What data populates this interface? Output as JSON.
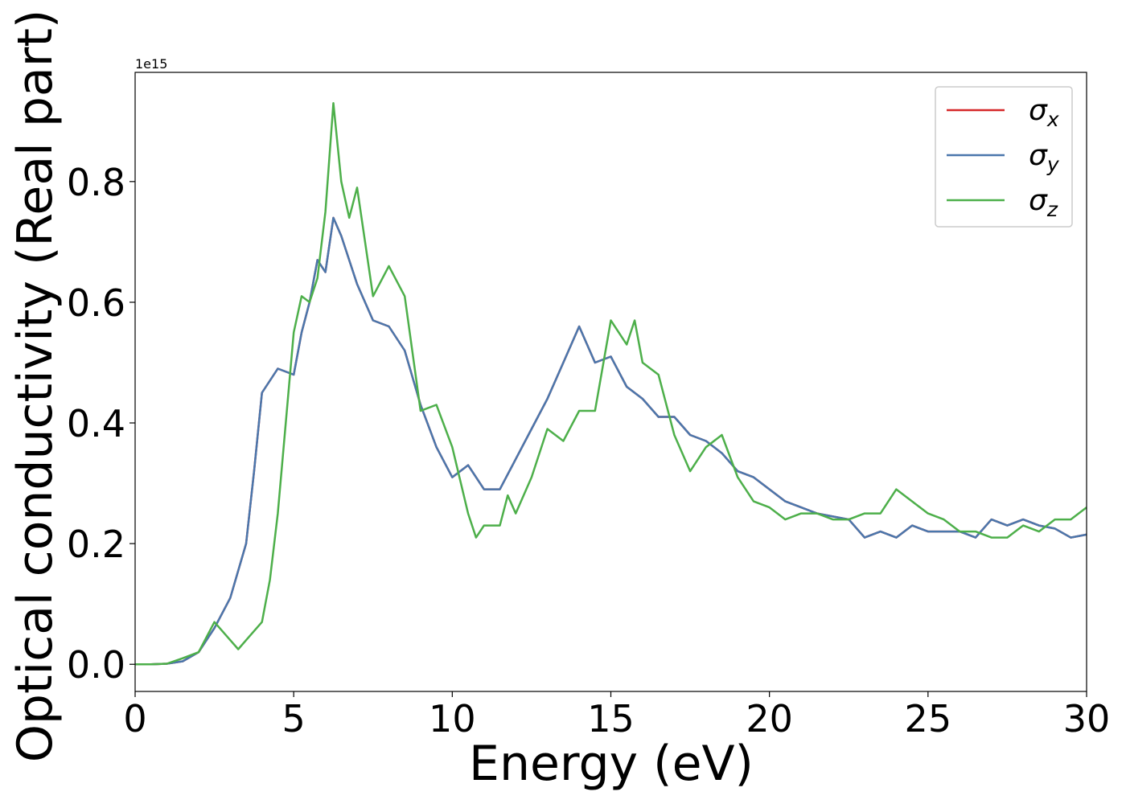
{
  "chart_data": {
    "type": "line",
    "xlabel": "Energy (eV)",
    "ylabel": "Optical conductivity (Real part)",
    "y_offset_label": "1e15",
    "xlim": [
      0,
      30
    ],
    "ylim": [
      -0.045,
      0.981
    ],
    "xticks": [
      0,
      5,
      10,
      15,
      20,
      25,
      30
    ],
    "yticks": [
      {
        "value": 0,
        "label": "0.0"
      },
      0.2,
      0.4,
      0.6,
      0.8
    ],
    "legend": "upper right",
    "series": [
      {
        "name": "σx",
        "color": "#d62728",
        "x": [
          0,
          0.5,
          1,
          1.5,
          2,
          2.5,
          3,
          3.5,
          3.75,
          4,
          4.5,
          5,
          5.25,
          5.5,
          5.75,
          6,
          6.25,
          6.5,
          7,
          7.5,
          8,
          8.5,
          9,
          9.5,
          10,
          10.5,
          11,
          11.5,
          12,
          12.5,
          13,
          13.5,
          14,
          14.5,
          15,
          15.5,
          16,
          16.5,
          17,
          17.5,
          18,
          18.5,
          19,
          19.5,
          20,
          20.5,
          21,
          21.5,
          22,
          22.5,
          23,
          23.5,
          24,
          24.5,
          25,
          25.5,
          26,
          26.5,
          27,
          27.5,
          28,
          28.5,
          29,
          29.5,
          30
        ],
        "values": [
          0,
          0,
          0.001,
          0.005,
          0.02,
          0.06,
          0.11,
          0.2,
          0.32,
          0.45,
          0.49,
          0.48,
          0.55,
          0.6,
          0.67,
          0.65,
          0.74,
          0.71,
          0.63,
          0.57,
          0.56,
          0.52,
          0.43,
          0.36,
          0.31,
          0.33,
          0.29,
          0.29,
          0.34,
          0.39,
          0.44,
          0.5,
          0.56,
          0.5,
          0.51,
          0.46,
          0.44,
          0.41,
          0.41,
          0.38,
          0.37,
          0.35,
          0.32,
          0.31,
          0.29,
          0.27,
          0.26,
          0.25,
          0.245,
          0.24,
          0.21,
          0.22,
          0.21,
          0.23,
          0.22,
          0.22,
          0.22,
          0.21,
          0.24,
          0.23,
          0.24,
          0.23,
          0.225,
          0.21,
          0.215
        ]
      },
      {
        "name": "σy",
        "color": "#4a77ac",
        "x": [
          0,
          0.5,
          1,
          1.5,
          2,
          2.5,
          3,
          3.5,
          3.75,
          4,
          4.5,
          5,
          5.25,
          5.5,
          5.75,
          6,
          6.25,
          6.5,
          7,
          7.5,
          8,
          8.5,
          9,
          9.5,
          10,
          10.5,
          11,
          11.5,
          12,
          12.5,
          13,
          13.5,
          14,
          14.5,
          15,
          15.5,
          16,
          16.5,
          17,
          17.5,
          18,
          18.5,
          19,
          19.5,
          20,
          20.5,
          21,
          21.5,
          22,
          22.5,
          23,
          23.5,
          24,
          24.5,
          25,
          25.5,
          26,
          26.5,
          27,
          27.5,
          28,
          28.5,
          29,
          29.5,
          30
        ],
        "values": [
          0,
          0,
          0.001,
          0.005,
          0.02,
          0.06,
          0.11,
          0.2,
          0.32,
          0.45,
          0.49,
          0.48,
          0.55,
          0.6,
          0.67,
          0.65,
          0.74,
          0.71,
          0.63,
          0.57,
          0.56,
          0.52,
          0.43,
          0.36,
          0.31,
          0.33,
          0.29,
          0.29,
          0.34,
          0.39,
          0.44,
          0.5,
          0.56,
          0.5,
          0.51,
          0.46,
          0.44,
          0.41,
          0.41,
          0.38,
          0.37,
          0.35,
          0.32,
          0.31,
          0.29,
          0.27,
          0.26,
          0.25,
          0.245,
          0.24,
          0.21,
          0.22,
          0.21,
          0.23,
          0.22,
          0.22,
          0.22,
          0.21,
          0.24,
          0.23,
          0.24,
          0.23,
          0.225,
          0.21,
          0.215
        ]
      },
      {
        "name": "σz",
        "color": "#4daf4a",
        "x": [
          0,
          0.5,
          1,
          1.5,
          2,
          2.5,
          3,
          3.25,
          3.5,
          4,
          4.25,
          4.5,
          5,
          5.25,
          5.5,
          5.75,
          6,
          6.25,
          6.5,
          6.75,
          7,
          7.5,
          8,
          8.5,
          9,
          9.5,
          10,
          10.5,
          10.75,
          11,
          11.5,
          11.75,
          12,
          12.5,
          13,
          13.5,
          14,
          14.5,
          15,
          15.5,
          15.75,
          16,
          16.5,
          17,
          17.5,
          18,
          18.5,
          19,
          19.5,
          20,
          20.5,
          21,
          21.5,
          22,
          22.5,
          23,
          23.5,
          24,
          24.5,
          25,
          25.5,
          26,
          26.5,
          27,
          27.5,
          28,
          28.5,
          29,
          29.5,
          30
        ],
        "values": [
          0,
          0,
          0.001,
          0.01,
          0.02,
          0.07,
          0.04,
          0.025,
          0.04,
          0.07,
          0.14,
          0.25,
          0.55,
          0.61,
          0.6,
          0.64,
          0.75,
          0.93,
          0.8,
          0.74,
          0.79,
          0.61,
          0.66,
          0.61,
          0.42,
          0.43,
          0.36,
          0.25,
          0.21,
          0.23,
          0.23,
          0.28,
          0.25,
          0.31,
          0.39,
          0.37,
          0.42,
          0.42,
          0.57,
          0.53,
          0.57,
          0.5,
          0.48,
          0.38,
          0.32,
          0.36,
          0.38,
          0.31,
          0.27,
          0.26,
          0.24,
          0.25,
          0.25,
          0.24,
          0.24,
          0.25,
          0.25,
          0.29,
          0.27,
          0.25,
          0.24,
          0.22,
          0.22,
          0.21,
          0.21,
          0.23,
          0.22,
          0.24,
          0.24,
          0.26
        ]
      }
    ]
  }
}
